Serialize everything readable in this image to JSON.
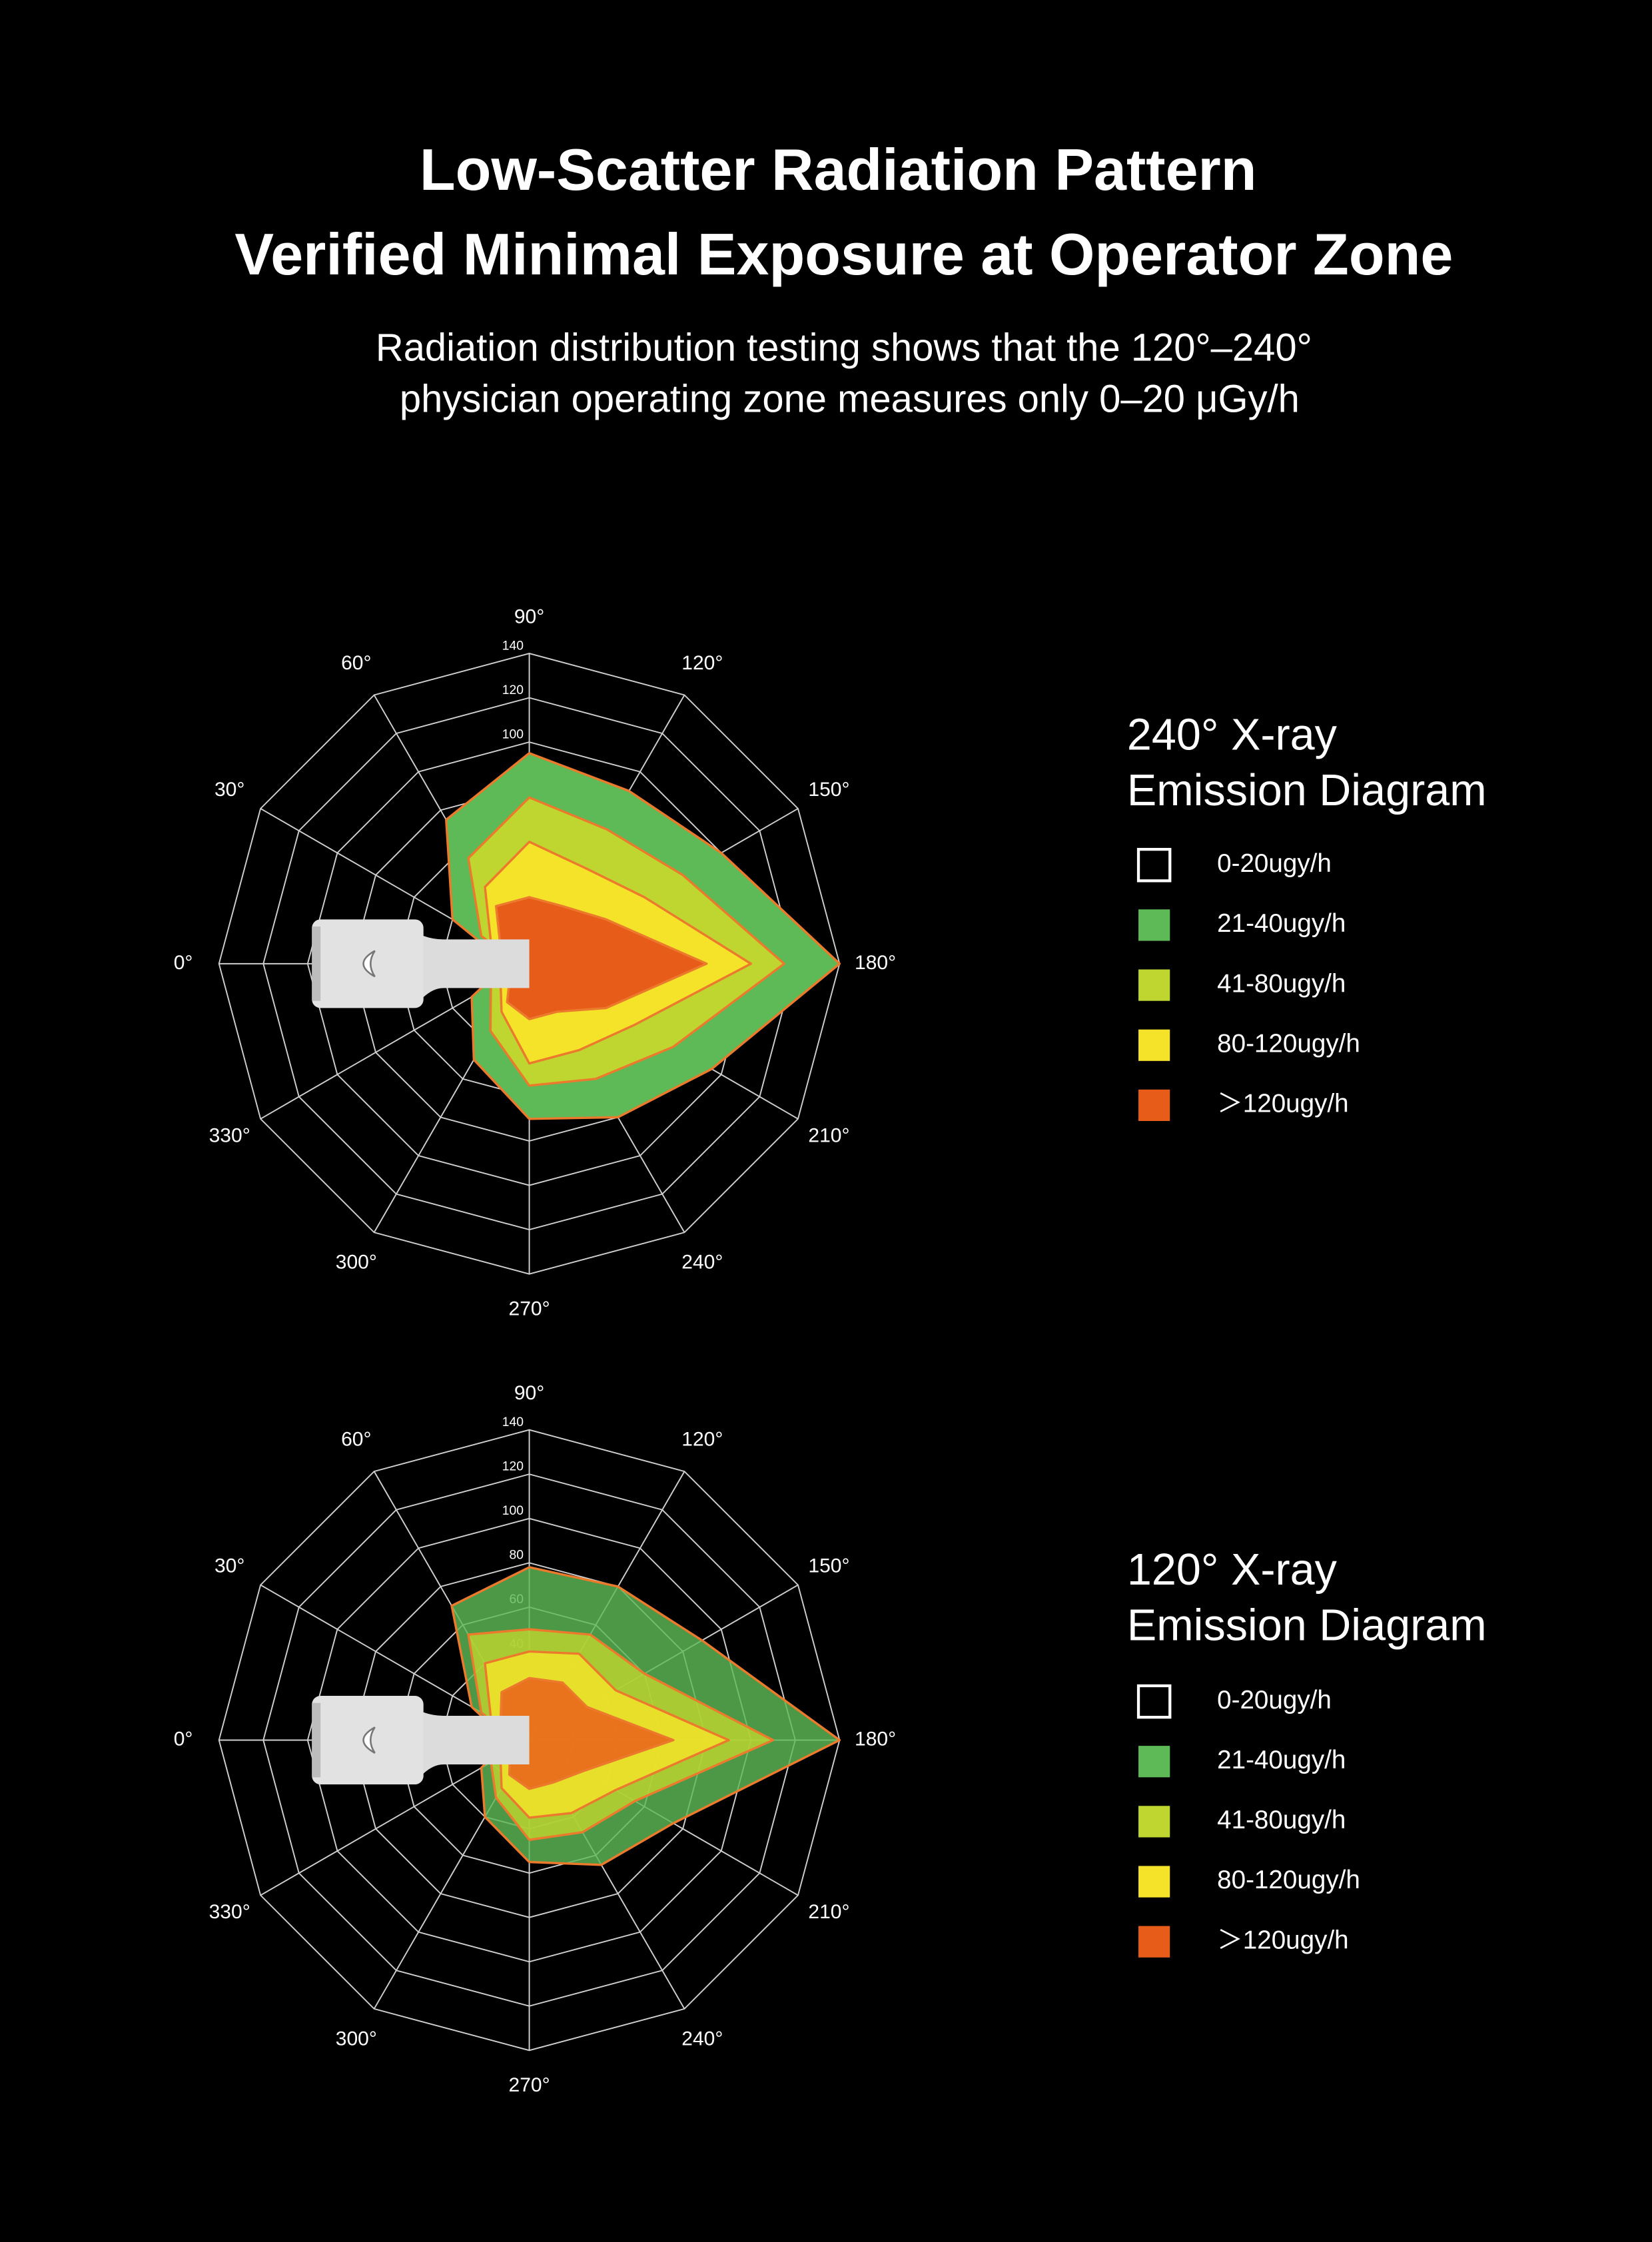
{
  "header": {
    "title": [
      "Low-Scatter Radiation Pattern",
      "Verified Minimal Exposure at Operator Zone"
    ],
    "subtitle": [
      "Radiation distribution testing shows that the 120°–240°",
      "physician operating zone measures only 0–20 μGy/h"
    ]
  },
  "chart_data": [
    {
      "type": "radar",
      "title": [
        "240°  X-ray",
        "Emission Diagram"
      ],
      "categories": [
        "0°",
        "30°",
        "60°",
        "90°",
        "120°",
        "150°",
        "180°",
        "210°",
        "240°",
        "270°",
        "300°",
        "330°"
      ],
      "rlim": [
        0,
        140
      ],
      "rticks": [
        20,
        40,
        60,
        80,
        100,
        120,
        140
      ],
      "opacity": 1,
      "series": [
        {
          "name": "0-20ugy/h",
          "color": "#000000",
          "edge": "#ffffff"
        },
        {
          "name": "21-40ugy/h",
          "color": "#5dba57",
          "values": [
            10,
            40,
            75,
            95,
            90,
            100,
            140,
            95,
            80,
            70,
            50,
            30
          ]
        },
        {
          "name": "41-80ugy/h",
          "color": "#bfd630",
          "values": [
            5,
            25,
            55,
            75,
            70,
            80,
            115,
            75,
            60,
            55,
            35,
            20
          ]
        },
        {
          "name": "80-120ugy/h",
          "color": "#f5e32a",
          "values": [
            3,
            20,
            40,
            55,
            50,
            60,
            100,
            55,
            45,
            45,
            25,
            15
          ]
        },
        {
          "name": "＞120ugy/h",
          "color": "#e85c1a",
          "values": [
            2,
            15,
            30,
            30,
            30,
            40,
            80,
            40,
            25,
            25,
            20,
            10
          ]
        }
      ]
    },
    {
      "type": "radar",
      "title": [
        "120°  X-ray",
        "Emission Diagram"
      ],
      "categories": [
        "0°",
        "30°",
        "60°",
        "90°",
        "120°",
        "150°",
        "180°",
        "210°",
        "240°",
        "270°",
        "300°",
        "330°"
      ],
      "rlim": [
        0,
        140
      ],
      "rticks": [
        20,
        40,
        60,
        80,
        100,
        120,
        140
      ],
      "opacity": 0.82,
      "series": [
        {
          "name": "0-20ugy/h",
          "color": "#000000",
          "edge": "#ffffff"
        },
        {
          "name": "21-40ugy/h",
          "color": "#5dba57",
          "values": [
            10,
            30,
            70,
            78,
            80,
            90,
            140,
            75,
            65,
            55,
            40,
            25
          ]
        },
        {
          "name": "41-80ugy/h",
          "color": "#bfd630",
          "values": [
            6,
            25,
            55,
            50,
            55,
            60,
            110,
            55,
            48,
            45,
            30,
            20
          ]
        },
        {
          "name": "80-120ugy/h",
          "color": "#f5e32a",
          "values": [
            4,
            20,
            40,
            40,
            45,
            45,
            90,
            45,
            38,
            35,
            25,
            15
          ]
        },
        {
          "name": "＞120ugy/h",
          "color": "#e85c1a",
          "values": [
            2,
            15,
            25,
            28,
            30,
            30,
            65,
            28,
            22,
            22,
            18,
            10
          ]
        }
      ]
    }
  ]
}
